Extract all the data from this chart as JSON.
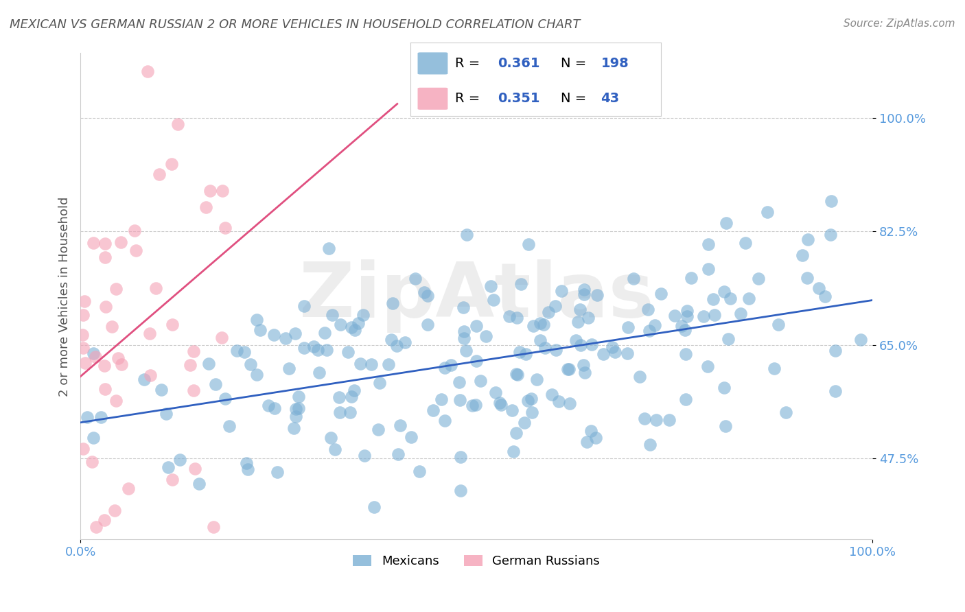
{
  "title": "MEXICAN VS GERMAN RUSSIAN 2 OR MORE VEHICLES IN HOUSEHOLD CORRELATION CHART",
  "source": "Source: ZipAtlas.com",
  "xlabel": "",
  "ylabel": "2 or more Vehicles in Household",
  "r_blue": 0.361,
  "n_blue": 198,
  "r_pink": 0.351,
  "n_pink": 43,
  "xlim": [
    0,
    100
  ],
  "ylim": [
    35,
    110
  ],
  "yticks": [
    47.5,
    65.0,
    82.5,
    100.0
  ],
  "xticks": [
    0,
    100
  ],
  "xtick_labels": [
    "0.0%",
    "100.0%"
  ],
  "ytick_labels": [
    "47.5%",
    "65.0%",
    "82.5%",
    "100.0%"
  ],
  "blue_color": "#7bafd4",
  "pink_color": "#f4a0b5",
  "blue_line_color": "#3060c0",
  "pink_line_color": "#e05080",
  "legend_blue_label": "Mexicans",
  "legend_pink_label": "German Russians",
  "watermark": "ZipAtlas",
  "background_color": "#ffffff",
  "grid_color": "#cccccc",
  "title_color": "#555555",
  "axis_label_color": "#555555",
  "tick_label_color": "#5599dd",
  "blue_seed": 42,
  "pink_seed": 7
}
